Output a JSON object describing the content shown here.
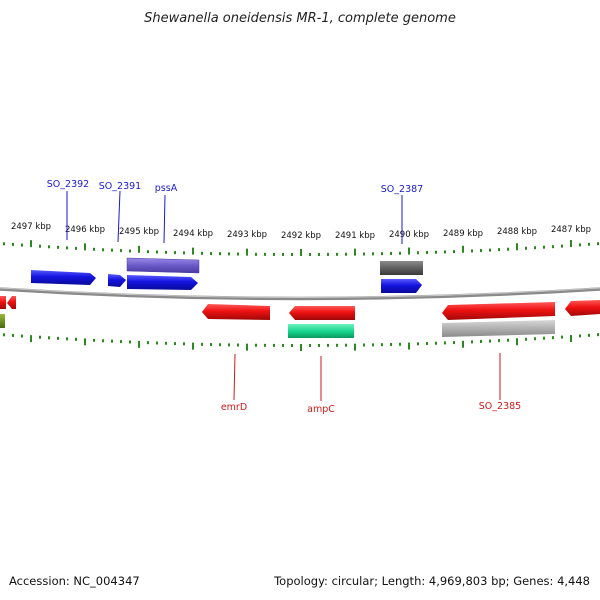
{
  "title": "Shewanella oneidensis MR-1, complete genome",
  "footer": {
    "accession": "Accession: NC_004347",
    "summary": "Topology: circular; Length: 4,969,803 bp; Genes: 4,448"
  },
  "colors": {
    "backbone": "#8a8a8a",
    "tick": "#2a8a1e",
    "label_plus": "#1a1ad0",
    "label_minus": "#cc1a1a",
    "forward_gene": "#1414e0",
    "reverse_gene": "#ee1111",
    "purple_feature": "#6a5ac8",
    "gray_feature": "#6a6a6a",
    "light_gray_feature": "#b0b0b0",
    "green_feature": "#18d890",
    "olive_feature": "#6a8a1a"
  },
  "axis": {
    "unit": "kbp",
    "tick_labels": [
      "2497 kbp",
      "2496 kbp",
      "2495 kbp",
      "2494 kbp",
      "2493 kbp",
      "2492 kbp",
      "2491 kbp",
      "2490 kbp",
      "2489 kbp",
      "2488 kbp",
      "2487 kbp"
    ]
  },
  "gene_labels_top": [
    "SO_2392",
    "SO_2391",
    "pssA",
    "SO_2387"
  ],
  "gene_labels_bottom": [
    "emrD",
    "ampC",
    "SO_2385"
  ]
}
